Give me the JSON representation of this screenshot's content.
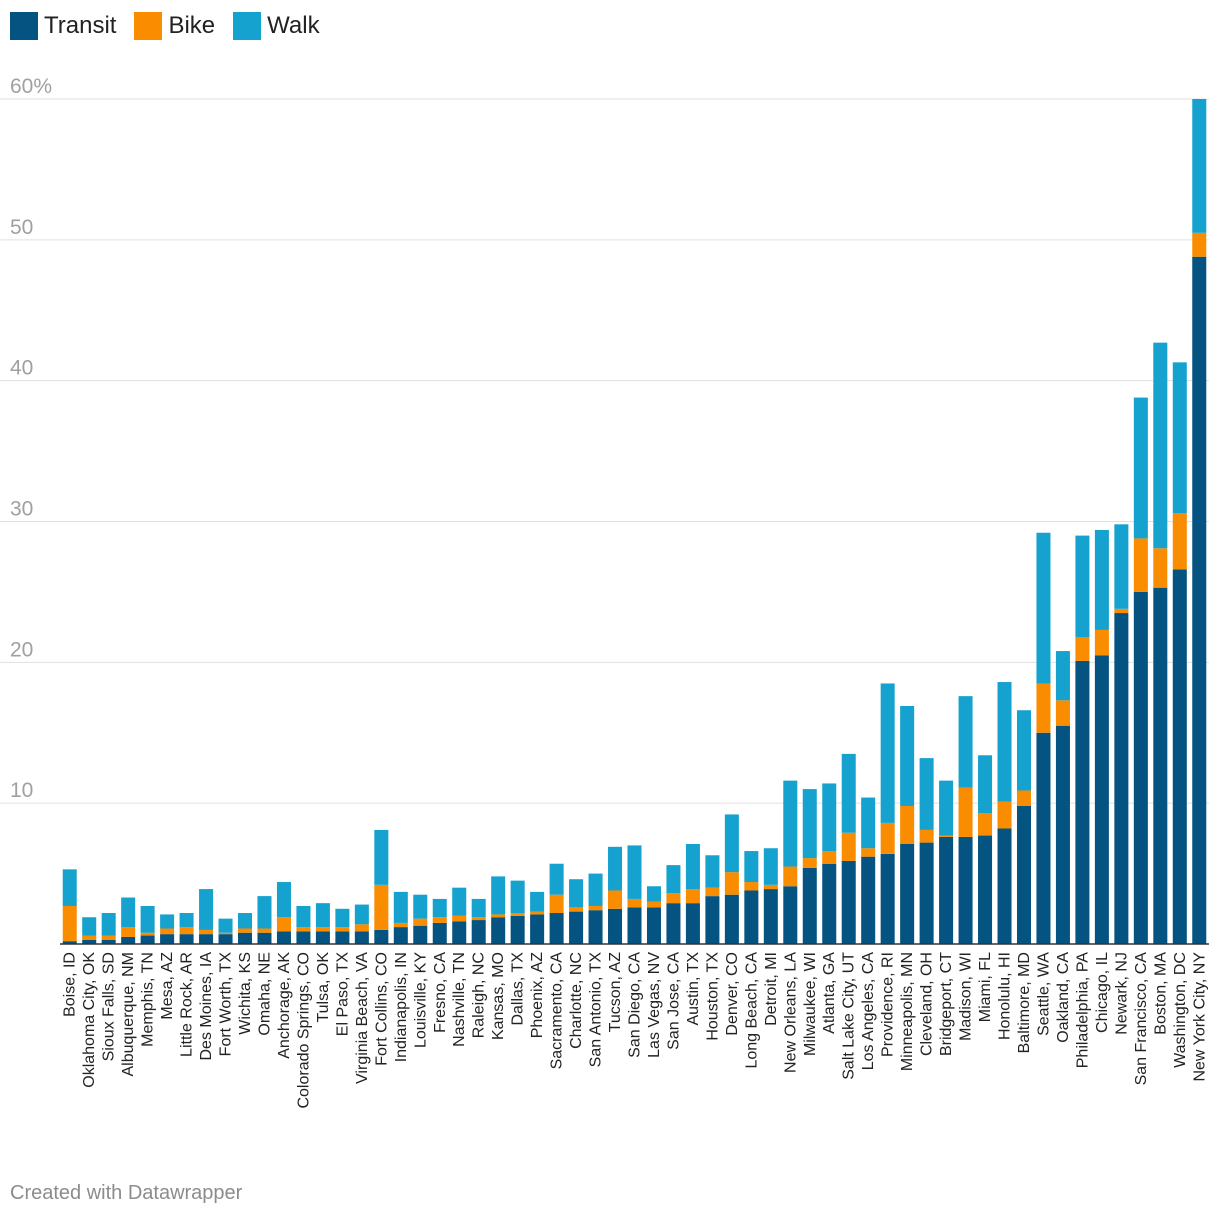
{
  "chart_data": {
    "type": "bar",
    "stacked": true,
    "title": "",
    "xlabel": "",
    "ylabel": "",
    "ylim": [
      0,
      60
    ],
    "yticks": [
      10,
      20,
      30,
      40,
      50,
      60
    ],
    "ytick_labels": [
      "10",
      "20",
      "30",
      "40",
      "50",
      "60%"
    ],
    "grid": true,
    "legend": "top-left",
    "categories": [
      "Boise, ID",
      "Oklahoma City, OK",
      "Sioux Falls, SD",
      "Albuquerque, NM",
      "Memphis, TN",
      "Mesa, AZ",
      "Little Rock, AR",
      "Des Moines, IA",
      "Fort Worth, TX",
      "Wichita, KS",
      "Omaha, NE",
      "Anchorage, AK",
      "Colorado Springs, CO",
      "Tulsa, OK",
      "El Paso, TX",
      "Virginia Beach, VA",
      "Fort Collins, CO",
      "Indianapolis, IN",
      "Louisville, KY",
      "Fresno, CA",
      "Nashville, TN",
      "Raleigh, NC",
      "Kansas, MO",
      "Dallas, TX",
      "Phoenix, AZ",
      "Sacramento, CA",
      "Charlotte, NC",
      "San Antonio, TX",
      "Tucson, AZ",
      "San Diego, CA",
      "Las Vegas, NV",
      "San Jose, CA",
      "Austin, TX",
      "Houston, TX",
      "Denver, CO",
      "Long Beach, CA",
      "Detroit, MI",
      "New Orleans, LA",
      "Milwaukee, WI",
      "Atlanta, GA",
      "Salt Lake City, UT",
      "Los Angeles, CA",
      "Providence, RI",
      "Minneapolis, MN",
      "Cleveland, OH",
      "Bridgeport, CT",
      "Madison, WI",
      "Miami, FL",
      "Honolulu, HI",
      "Baltimore, MD",
      "Seattle, WA",
      "Oakland, CA",
      "Philadelphia, PA",
      "Chicago, IL",
      "Newark, NJ",
      "San Francisco, CA",
      "Boston, MA",
      "Washington, DC",
      "New York City, NY"
    ],
    "series": [
      {
        "name": "Transit",
        "color": "#045380",
        "values": [
          0.2,
          0.3,
          0.3,
          0.5,
          0.6,
          0.7,
          0.7,
          0.7,
          0.7,
          0.8,
          0.8,
          0.9,
          0.9,
          0.9,
          0.9,
          0.9,
          1.0,
          1.2,
          1.3,
          1.5,
          1.6,
          1.7,
          1.9,
          2.0,
          2.1,
          2.2,
          2.3,
          2.4,
          2.5,
          2.6,
          2.6,
          2.9,
          2.9,
          3.4,
          3.5,
          3.8,
          3.9,
          4.1,
          5.4,
          5.7,
          5.9,
          6.2,
          6.4,
          7.1,
          7.2,
          7.6,
          7.6,
          7.7,
          8.2,
          9.8,
          15.0,
          15.5,
          20.1,
          20.5,
          23.5,
          25.0,
          25.3,
          26.6,
          48.8
        ]
      },
      {
        "name": "Bike",
        "color": "#fa8c00",
        "values": [
          2.5,
          0.3,
          0.3,
          0.7,
          0.2,
          0.4,
          0.5,
          0.3,
          0.1,
          0.3,
          0.3,
          1.0,
          0.3,
          0.3,
          0.3,
          0.5,
          3.2,
          0.3,
          0.5,
          0.4,
          0.4,
          0.2,
          0.2,
          0.2,
          0.2,
          1.3,
          0.3,
          0.3,
          1.3,
          0.6,
          0.4,
          0.7,
          1.0,
          0.6,
          1.6,
          0.6,
          0.3,
          1.4,
          0.7,
          0.9,
          2.0,
          0.6,
          2.2,
          2.7,
          0.9,
          0.1,
          3.5,
          1.6,
          1.9,
          1.1,
          3.5,
          1.8,
          1.7,
          1.8,
          0.3,
          3.8,
          2.8,
          4.0,
          1.7
        ]
      },
      {
        "name": "Walk",
        "color": "#15a2cf",
        "values": [
          2.6,
          1.3,
          1.6,
          2.1,
          1.9,
          1.0,
          1.0,
          2.9,
          1.0,
          1.1,
          2.3,
          2.5,
          1.5,
          1.7,
          1.3,
          1.4,
          3.9,
          2.2,
          1.7,
          1.3,
          2.0,
          1.3,
          2.7,
          2.3,
          1.4,
          2.2,
          2.0,
          2.3,
          3.1,
          3.8,
          1.1,
          2.0,
          3.2,
          2.3,
          4.1,
          2.2,
          2.6,
          6.1,
          4.9,
          4.8,
          5.6,
          3.6,
          9.9,
          7.1,
          5.1,
          3.9,
          6.5,
          4.1,
          8.5,
          5.7,
          10.7,
          3.5,
          7.2,
          7.1,
          6.0,
          10.0,
          14.6,
          10.7,
          9.5
        ]
      }
    ]
  },
  "footer": {
    "credit": "Created with Datawrapper"
  }
}
